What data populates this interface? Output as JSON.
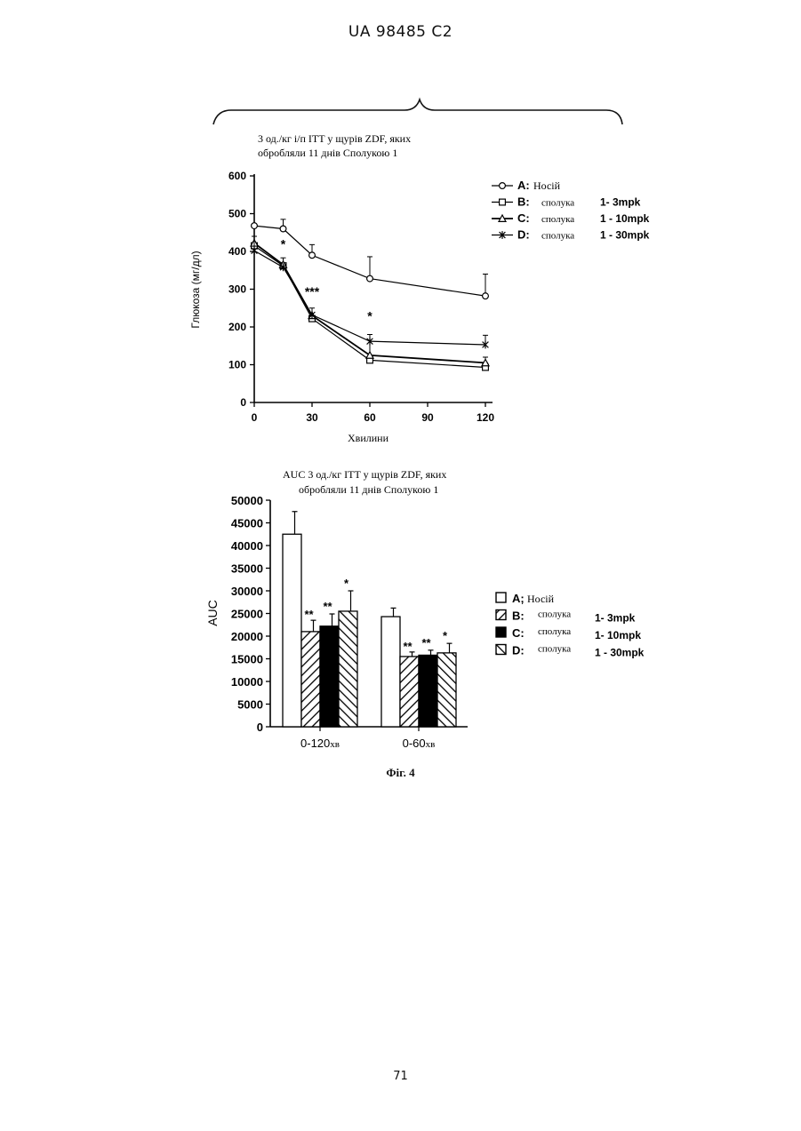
{
  "header": {
    "patent_id": "UA   98485   C2"
  },
  "figure": {
    "caption": "Фіг. 4"
  },
  "page": {
    "number": "71"
  },
  "chart_data": [
    {
      "type": "line",
      "title_lines": [
        "3 од./кг і/п ITT у щурів ZDF, яких",
        "обробляли 11 днів Сполукою 1"
      ],
      "xlabel": "Хвилини",
      "ylabel": "Глюкоза (мг/дл)",
      "x": [
        0,
        15,
        30,
        60,
        120
      ],
      "x_ticks": [
        0,
        30,
        60,
        90,
        120
      ],
      "y_ticks": [
        0,
        100,
        200,
        300,
        400,
        500,
        600
      ],
      "xlim": [
        0,
        120
      ],
      "ylim": [
        0,
        600
      ],
      "legend_position": "top-right",
      "series": [
        {
          "letter": "A:",
          "name": "Носій",
          "dose": "",
          "marker": "circle",
          "values": [
            468,
            460,
            390,
            328,
            282
          ],
          "errors": [
            null,
            25,
            28,
            58,
            58
          ]
        },
        {
          "letter": "B:",
          "name": "сполука",
          "dose": "1- 3mpk",
          "marker": "square",
          "values": [
            415,
            362,
            222,
            112,
            93
          ],
          "errors": [
            null,
            null,
            null,
            null,
            12
          ]
        },
        {
          "letter": "C:",
          "name": "сполука",
          "dose": "1 - 10mpk",
          "marker": "triangle",
          "values": [
            422,
            365,
            230,
            125,
            105
          ],
          "errors": [
            null,
            18,
            null,
            55,
            15
          ]
        },
        {
          "letter": "D:",
          "name": "сполука",
          "dose": "1 - 30mpk",
          "marker": "x",
          "values": [
            402,
            358,
            232,
            162,
            153
          ],
          "errors": [
            38,
            null,
            18,
            null,
            25
          ]
        }
      ],
      "annotations": [
        {
          "text": "*",
          "x": 15,
          "y": 408
        },
        {
          "text": "***",
          "x": 30,
          "y": 282
        },
        {
          "text": "*",
          "x": 60,
          "y": 218
        }
      ]
    },
    {
      "type": "bar",
      "title_lines": [
        "AUC 3 од./кг ITT у щурів ZDF, яких",
        "обробляли 11 днів Сполукою 1"
      ],
      "ylabel": "AUC",
      "categories": [
        "0-120хв",
        "0-60хв"
      ],
      "category_labels": [
        {
          "main": "0-120",
          "unit": "хв"
        },
        {
          "main": "0-60",
          "unit": "хв"
        }
      ],
      "y_ticks": [
        0,
        5000,
        10000,
        15000,
        20000,
        25000,
        30000,
        35000,
        40000,
        45000,
        50000
      ],
      "ylim": [
        0,
        50000
      ],
      "legend_position": "right",
      "series": [
        {
          "letter": "A;",
          "name": "Носій",
          "dose": "",
          "fill": "white",
          "values": [
            42500,
            24300
          ],
          "errors": [
            5000,
            1900
          ],
          "marks": [
            "",
            ""
          ]
        },
        {
          "letter": "B:",
          "name": "сполука",
          "dose": "1- 3mpk",
          "fill": "hatch-right",
          "values": [
            21000,
            15500
          ],
          "errors": [
            2500,
            1000
          ],
          "marks": [
            "**",
            "**"
          ]
        },
        {
          "letter": "C:",
          "name": "сполука",
          "dose": "1- 10mpk",
          "fill": "black",
          "values": [
            22200,
            15800
          ],
          "errors": [
            2700,
            1100
          ],
          "marks": [
            "**",
            "**"
          ]
        },
        {
          "letter": "D:",
          "name": "сполука",
          "dose": "1 - 30mpk",
          "fill": "hatch-left",
          "values": [
            25500,
            16300
          ],
          "errors": [
            4500,
            2100
          ],
          "marks": [
            "*",
            "*"
          ]
        }
      ]
    }
  ]
}
